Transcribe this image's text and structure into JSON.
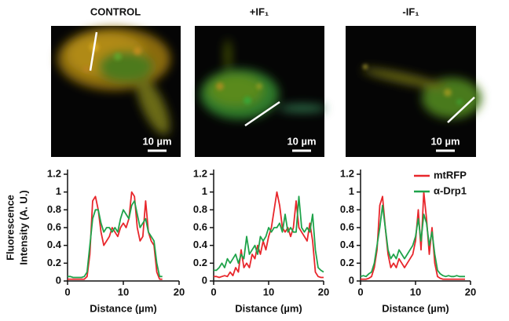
{
  "panels": [
    {
      "title": "CONTROL",
      "scale_bar": "10 µm"
    },
    {
      "title": "+IF₁",
      "scale_bar": "10 µm"
    },
    {
      "title": "-IF₁",
      "scale_bar": "10 µm"
    }
  ],
  "chart_data": [
    {
      "type": "line",
      "ylabel": [
        "Fluorescence",
        "Intensity (A. U.)"
      ],
      "xlabel": "Distance (µm)",
      "x": [
        0,
        0.5,
        1,
        1.5,
        2,
        2.5,
        3,
        3.5,
        4,
        4.5,
        5,
        5.5,
        6,
        6.5,
        7,
        7.5,
        8,
        8.5,
        9,
        9.5,
        10,
        10.5,
        11,
        11.5,
        12,
        12.5,
        13,
        13.5,
        14,
        14.5,
        15,
        15.5,
        16,
        16.5,
        17
      ],
      "series": [
        {
          "color": "#e8262b",
          "values": [
            0.02,
            0.02,
            0.02,
            0.02,
            0.02,
            0.02,
            0.02,
            0.05,
            0.3,
            0.9,
            0.95,
            0.8,
            0.55,
            0.4,
            0.45,
            0.5,
            0.6,
            0.55,
            0.5,
            0.6,
            0.65,
            0.6,
            0.7,
            1.0,
            0.95,
            0.6,
            0.45,
            0.5,
            0.9,
            0.55,
            0.45,
            0.4,
            0.1,
            0.02,
            0.02
          ]
        },
        {
          "color": "#1fa34a",
          "values": [
            0.05,
            0.05,
            0.04,
            0.04,
            0.04,
            0.04,
            0.05,
            0.1,
            0.4,
            0.7,
            0.8,
            0.8,
            0.65,
            0.55,
            0.6,
            0.6,
            0.55,
            0.6,
            0.55,
            0.7,
            0.8,
            0.75,
            0.7,
            0.85,
            0.9,
            0.75,
            0.6,
            0.65,
            0.7,
            0.55,
            0.5,
            0.45,
            0.2,
            0.05,
            0.05
          ]
        }
      ],
      "xlim": [
        0,
        20
      ],
      "ylim": [
        0,
        1.2
      ],
      "xticks": [
        0,
        10,
        20
      ],
      "yticks": [
        0,
        0.2,
        0.4,
        0.6,
        0.8,
        1,
        1.2
      ],
      "grid": false
    },
    {
      "type": "line",
      "xlabel": "Distance (µm)",
      "x": [
        0,
        0.5,
        1,
        1.5,
        2,
        2.5,
        3,
        3.5,
        4,
        4.5,
        5,
        5.5,
        6,
        6.5,
        7,
        7.5,
        8,
        8.5,
        9,
        9.5,
        10,
        10.5,
        11,
        11.5,
        12,
        12.5,
        13,
        13.5,
        14,
        14.5,
        15,
        15.5,
        16,
        16.5,
        17,
        17.5,
        18,
        18.5,
        19,
        19.5,
        20
      ],
      "series": [
        {
          "color": "#e8262b",
          "values": [
            0.05,
            0.05,
            0.04,
            0.05,
            0.06,
            0.05,
            0.1,
            0.06,
            0.15,
            0.1,
            0.35,
            0.15,
            0.2,
            0.15,
            0.3,
            0.25,
            0.4,
            0.3,
            0.45,
            0.35,
            0.5,
            0.6,
            0.8,
            1.0,
            0.85,
            0.6,
            0.55,
            0.6,
            0.5,
            0.6,
            0.9,
            0.6,
            0.55,
            0.5,
            0.45,
            0.65,
            0.45,
            0.1,
            0.05,
            0.04,
            0.04
          ]
        },
        {
          "color": "#1fa34a",
          "values": [
            0.12,
            0.12,
            0.15,
            0.2,
            0.15,
            0.25,
            0.2,
            0.25,
            0.3,
            0.2,
            0.3,
            0.25,
            0.5,
            0.3,
            0.35,
            0.4,
            0.3,
            0.5,
            0.45,
            0.5,
            0.6,
            0.55,
            0.6,
            0.6,
            0.65,
            0.55,
            0.75,
            0.55,
            0.6,
            0.55,
            0.55,
            0.95,
            0.6,
            0.55,
            0.6,
            0.55,
            0.75,
            0.35,
            0.15,
            0.12,
            0.1
          ]
        }
      ],
      "xlim": [
        0,
        20
      ],
      "ylim": [
        0,
        1.2
      ],
      "xticks": [
        0,
        10,
        20
      ],
      "yticks": [
        0,
        0.2,
        0.4,
        0.6,
        0.8,
        1,
        1.2
      ],
      "grid": false
    },
    {
      "type": "line",
      "xlabel": "Distance (µm)",
      "x": [
        0,
        0.5,
        1,
        1.5,
        2,
        2.5,
        3,
        3.5,
        4,
        4.5,
        5,
        5.5,
        6,
        6.5,
        7,
        7.5,
        8,
        8.5,
        9,
        9.5,
        10,
        10.5,
        11,
        11.5,
        12,
        12.5,
        13,
        13.5,
        14,
        14.5,
        15,
        15.5,
        16,
        16.5,
        17,
        17.5,
        18,
        18.5,
        19
      ],
      "series": [
        {
          "name": "mtRFP",
          "color": "#e8262b",
          "values": [
            0.02,
            0.02,
            0.02,
            0.03,
            0.05,
            0.15,
            0.35,
            0.85,
            0.95,
            0.6,
            0.3,
            0.15,
            0.2,
            0.15,
            0.25,
            0.2,
            0.15,
            0.2,
            0.25,
            0.3,
            0.45,
            0.8,
            0.35,
            1.0,
            0.7,
            0.3,
            0.6,
            0.2,
            0.05,
            0.03,
            0.02,
            0.02,
            0.02,
            0.02,
            0.02,
            0.02,
            0.02,
            0.02,
            0.02
          ]
        },
        {
          "name": "α-Drp1",
          "color": "#1fa34a",
          "values": [
            0.05,
            0.06,
            0.05,
            0.08,
            0.1,
            0.2,
            0.4,
            0.6,
            0.85,
            0.6,
            0.35,
            0.25,
            0.3,
            0.25,
            0.35,
            0.3,
            0.25,
            0.3,
            0.35,
            0.4,
            0.5,
            0.7,
            0.45,
            0.75,
            0.65,
            0.4,
            0.55,
            0.3,
            0.12,
            0.08,
            0.06,
            0.05,
            0.06,
            0.05,
            0.05,
            0.06,
            0.05,
            0.05,
            0.05
          ]
        }
      ],
      "xlim": [
        0,
        20
      ],
      "ylim": [
        0,
        1.2
      ],
      "xticks": [
        0,
        10,
        20
      ],
      "yticks": [
        0,
        0.2,
        0.4,
        0.6,
        0.8,
        1,
        1.2
      ],
      "grid": false,
      "legend": "upper right"
    }
  ]
}
